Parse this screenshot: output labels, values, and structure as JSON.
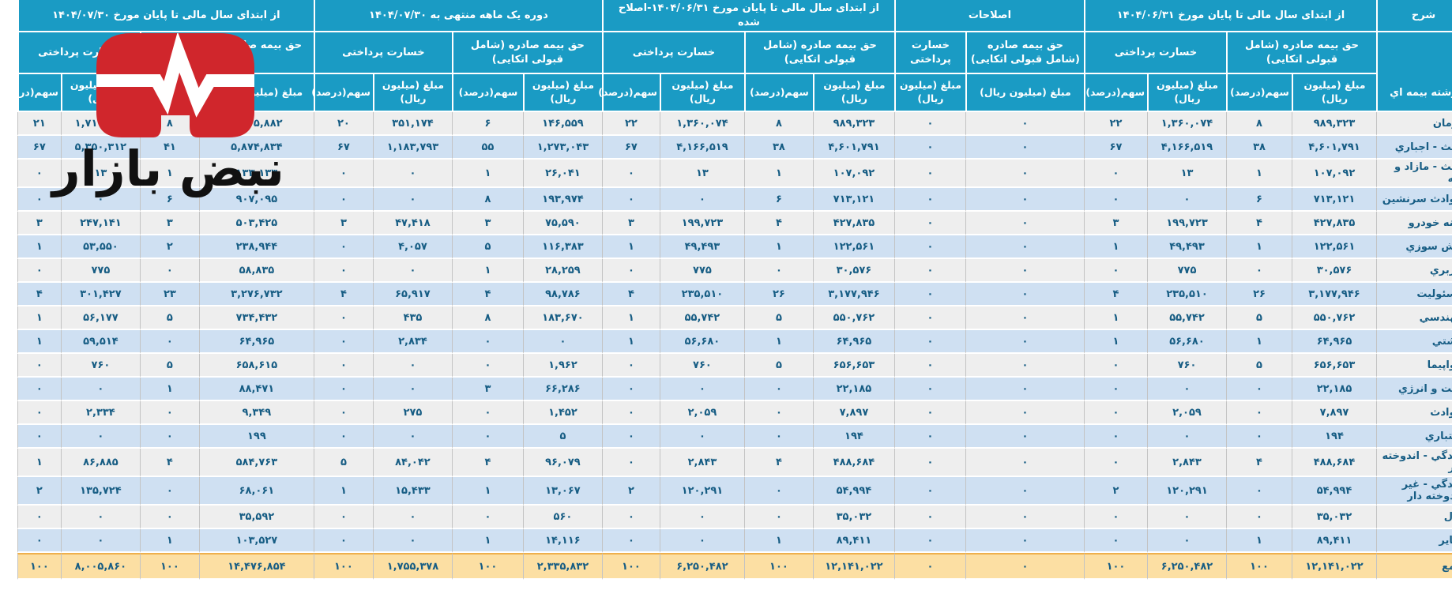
{
  "watermark": {
    "brand_text": "نبض بازار",
    "logo_color": "#d0262c"
  },
  "header": {
    "desc": "شرح",
    "desc_sub": "رشته بیمه اي",
    "premium_label": "حق بیمه صادره (شامل قبولی اتکایی)",
    "claims_label": "خسارت پرداختی",
    "amount_label": "مبلغ (میلیون ریال)",
    "share_label": "سهم(درصد)",
    "groups": [
      {
        "title": "از ابتدای سال مالی تا پایان مورخ ۱۴۰۴/۰۶/۳۱",
        "cols": 4
      },
      {
        "title": "اصلاحات",
        "cols": 2
      },
      {
        "title": "از ابتدای سال مالی تا پایان مورخ ۱۴۰۴/۰۶/۳۱-اصلاح شده",
        "cols": 4
      },
      {
        "title": "دوره یک ماهه منتهی به ۱۴۰۴/۰۷/۳۰",
        "cols": 4
      },
      {
        "title": "از ابتدای سال مالی تا پایان مورخ ۱۴۰۴/۰۷/۳۰",
        "cols": 4
      }
    ]
  },
  "colors": {
    "header_bg": "#1a9bc4",
    "row_odd": "#eeeeee",
    "row_even": "#cfe0f2",
    "total_bg": "#fcdfa3",
    "total_border": "#eeb04d",
    "text": "#175d84"
  },
  "rows": [
    {
      "label": "درمان",
      "total": false,
      "cells": [
        "۹۸۹,۳۲۳",
        "۸",
        "۱,۳۶۰,۰۷۴",
        "۲۲",
        "۰",
        "۰",
        "۹۸۹,۳۲۳",
        "۸",
        "۱,۳۶۰,۰۷۴",
        "۲۲",
        "۱۴۶,۵۵۹",
        "۶",
        "۳۵۱,۱۷۴",
        "۲۰",
        "۱,۱۳۵,۸۸۲",
        "۸",
        "۱,۷۱۱,۲۴۸",
        "۲۱"
      ]
    },
    {
      "label": "ثالث - اجباري",
      "total": false,
      "cells": [
        "۴,۶۰۱,۷۹۱",
        "۳۸",
        "۴,۱۶۶,۵۱۹",
        "۶۷",
        "۰",
        "۰",
        "۴,۶۰۱,۷۹۱",
        "۳۸",
        "۴,۱۶۶,۵۱۹",
        "۶۷",
        "۱,۲۷۳,۰۴۳",
        "۵۵",
        "۱,۱۸۳,۷۹۳",
        "۶۷",
        "۵,۸۷۴,۸۳۴",
        "۴۱",
        "۵,۳۵۰,۳۱۲",
        "۶۷"
      ]
    },
    {
      "label": "ثالث - مازاد و دیه",
      "total": false,
      "cells": [
        "۱۰۷,۰۹۲",
        "۱",
        "۱۳",
        "۰",
        "۰",
        "۰",
        "۱۰۷,۰۹۲",
        "۱",
        "۱۳",
        "۰",
        "۲۶,۰۴۱",
        "۱",
        "۰",
        "۰",
        "۱۳۳,۱۳۳",
        "۱",
        "۱۳",
        "۰"
      ]
    },
    {
      "label": "حوادث سرنشین",
      "total": false,
      "cells": [
        "۷۱۳,۱۲۱",
        "۶",
        "۰",
        "۰",
        "۰",
        "۰",
        "۷۱۳,۱۲۱",
        "۶",
        "۰",
        "۰",
        "۱۹۳,۹۷۴",
        "۸",
        "۰",
        "۰",
        "۹۰۷,۰۹۵",
        "۶",
        "۰",
        "۰"
      ]
    },
    {
      "label": "بدنه خودرو",
      "total": false,
      "cells": [
        "۴۲۷,۸۳۵",
        "۴",
        "۱۹۹,۷۲۳",
        "۳",
        "۰",
        "۰",
        "۴۲۷,۸۳۵",
        "۴",
        "۱۹۹,۷۲۳",
        "۳",
        "۷۵,۵۹۰",
        "۳",
        "۴۷,۴۱۸",
        "۳",
        "۵۰۳,۴۲۵",
        "۳",
        "۲۴۷,۱۴۱",
        "۳"
      ]
    },
    {
      "label": "آتش سوزي",
      "total": false,
      "cells": [
        "۱۲۲,۵۶۱",
        "۱",
        "۴۹,۴۹۳",
        "۱",
        "۰",
        "۰",
        "۱۲۲,۵۶۱",
        "۱",
        "۴۹,۴۹۳",
        "۱",
        "۱۱۶,۳۸۳",
        "۵",
        "۴,۰۵۷",
        "۰",
        "۲۳۸,۹۴۴",
        "۲",
        "۵۳,۵۵۰",
        "۱"
      ]
    },
    {
      "label": "باربري",
      "total": false,
      "cells": [
        "۳۰,۵۷۶",
        "۰",
        "۷۷۵",
        "۰",
        "۰",
        "۰",
        "۳۰,۵۷۶",
        "۰",
        "۷۷۵",
        "۰",
        "۲۸,۲۵۹",
        "۱",
        "۰",
        "۰",
        "۵۸,۸۳۵",
        "۰",
        "۷۷۵",
        "۰"
      ]
    },
    {
      "label": "مسئولیت",
      "total": false,
      "cells": [
        "۳,۱۷۷,۹۴۶",
        "۲۶",
        "۲۳۵,۵۱۰",
        "۴",
        "۰",
        "۰",
        "۳,۱۷۷,۹۴۶",
        "۲۶",
        "۲۳۵,۵۱۰",
        "۴",
        "۹۸,۷۸۶",
        "۴",
        "۶۵,۹۱۷",
        "۴",
        "۳,۲۷۶,۷۳۲",
        "۲۳",
        "۳۰۱,۴۲۷",
        "۴"
      ]
    },
    {
      "label": "مهندسي",
      "total": false,
      "cells": [
        "۵۵۰,۷۶۲",
        "۵",
        "۵۵,۷۴۲",
        "۱",
        "۰",
        "۰",
        "۵۵۰,۷۶۲",
        "۵",
        "۵۵,۷۴۲",
        "۱",
        "۱۸۳,۶۷۰",
        "۸",
        "۴۳۵",
        "۰",
        "۷۳۴,۴۳۲",
        "۵",
        "۵۶,۱۷۷",
        "۱"
      ]
    },
    {
      "label": "کشتي",
      "total": false,
      "cells": [
        "۶۴,۹۶۵",
        "۱",
        "۵۶,۶۸۰",
        "۱",
        "۰",
        "۰",
        "۶۴,۹۶۵",
        "۱",
        "۵۶,۶۸۰",
        "۱",
        "۰",
        "۰",
        "۲,۸۳۴",
        "۰",
        "۶۴,۹۶۵",
        "۰",
        "۵۹,۵۱۴",
        "۱"
      ]
    },
    {
      "label": "هواپیما",
      "total": false,
      "cells": [
        "۶۵۶,۶۵۳",
        "۵",
        "۷۶۰",
        "۰",
        "۰",
        "۰",
        "۶۵۶,۶۵۳",
        "۵",
        "۷۶۰",
        "۰",
        "۱,۹۶۲",
        "۰",
        "۰",
        "۰",
        "۶۵۸,۶۱۵",
        "۵",
        "۷۶۰",
        "۰"
      ]
    },
    {
      "label": "نفت و انرژي",
      "total": false,
      "cells": [
        "۲۲,۱۸۵",
        "۰",
        "۰",
        "۰",
        "۰",
        "۰",
        "۲۲,۱۸۵",
        "۰",
        "۰",
        "۰",
        "۶۶,۲۸۶",
        "۳",
        "۰",
        "۰",
        "۸۸,۴۷۱",
        "۱",
        "۰",
        "۰"
      ]
    },
    {
      "label": "حوادث",
      "total": false,
      "cells": [
        "۷,۸۹۷",
        "۰",
        "۲,۰۵۹",
        "۰",
        "۰",
        "۰",
        "۷,۸۹۷",
        "۰",
        "۲,۰۵۹",
        "۰",
        "۱,۴۵۲",
        "۰",
        "۲۷۵",
        "۰",
        "۹,۳۴۹",
        "۰",
        "۲,۳۳۴",
        "۰"
      ]
    },
    {
      "label": "اعتباري",
      "total": false,
      "cells": [
        "۱۹۴",
        "۰",
        "۰",
        "۰",
        "۰",
        "۰",
        "۱۹۴",
        "۰",
        "۰",
        "۰",
        "۵",
        "۰",
        "۰",
        "۰",
        "۱۹۹",
        "۰",
        "۰",
        "۰"
      ]
    },
    {
      "label": "زندگي - اندوخته دار",
      "total": false,
      "cells": [
        "۴۸۸,۶۸۴",
        "۴",
        "۲,۸۴۳",
        "۰",
        "۰",
        "۰",
        "۴۸۸,۶۸۴",
        "۴",
        "۲,۸۴۳",
        "۰",
        "۹۶,۰۷۹",
        "۴",
        "۸۴,۰۴۲",
        "۵",
        "۵۸۴,۷۶۳",
        "۴",
        "۸۶,۸۸۵",
        "۱"
      ]
    },
    {
      "label": "زندگي - غیر اندوخته دار",
      "total": false,
      "cells": [
        "۵۴,۹۹۴",
        "۰",
        "۱۲۰,۲۹۱",
        "۲",
        "۰",
        "۰",
        "۵۴,۹۹۴",
        "۰",
        "۱۲۰,۲۹۱",
        "۲",
        "۱۳,۰۶۷",
        "۱",
        "۱۵,۴۳۳",
        "۱",
        "۶۸,۰۶۱",
        "۰",
        "۱۳۵,۷۲۴",
        "۲"
      ]
    },
    {
      "label": "پول",
      "total": false,
      "cells": [
        "۳۵,۰۳۲",
        "۰",
        "۰",
        "۰",
        "۰",
        "۰",
        "۳۵,۰۳۲",
        "۰",
        "۰",
        "۰",
        "۵۶۰",
        "۰",
        "۰",
        "۰",
        "۳۵,۵۹۲",
        "۰",
        "۰",
        "۰"
      ]
    },
    {
      "label": "سایر",
      "total": false,
      "cells": [
        "۸۹,۴۱۱",
        "۱",
        "۰",
        "۰",
        "۰",
        "۰",
        "۸۹,۴۱۱",
        "۱",
        "۰",
        "۰",
        "۱۴,۱۱۶",
        "۱",
        "۰",
        "۰",
        "۱۰۳,۵۲۷",
        "۱",
        "۰",
        "۰"
      ]
    },
    {
      "label": "جمع",
      "total": true,
      "cells": [
        "۱۲,۱۴۱,۰۲۲",
        "۱۰۰",
        "۶,۲۵۰,۴۸۲",
        "۱۰۰",
        "۰",
        "۰",
        "۱۲,۱۴۱,۰۲۲",
        "۱۰۰",
        "۶,۲۵۰,۴۸۲",
        "۱۰۰",
        "۲,۳۳۵,۸۳۲",
        "۱۰۰",
        "۱,۷۵۵,۳۷۸",
        "۱۰۰",
        "۱۴,۴۷۶,۸۵۴",
        "۱۰۰",
        "۸,۰۰۵,۸۶۰",
        "۱۰۰"
      ]
    }
  ]
}
